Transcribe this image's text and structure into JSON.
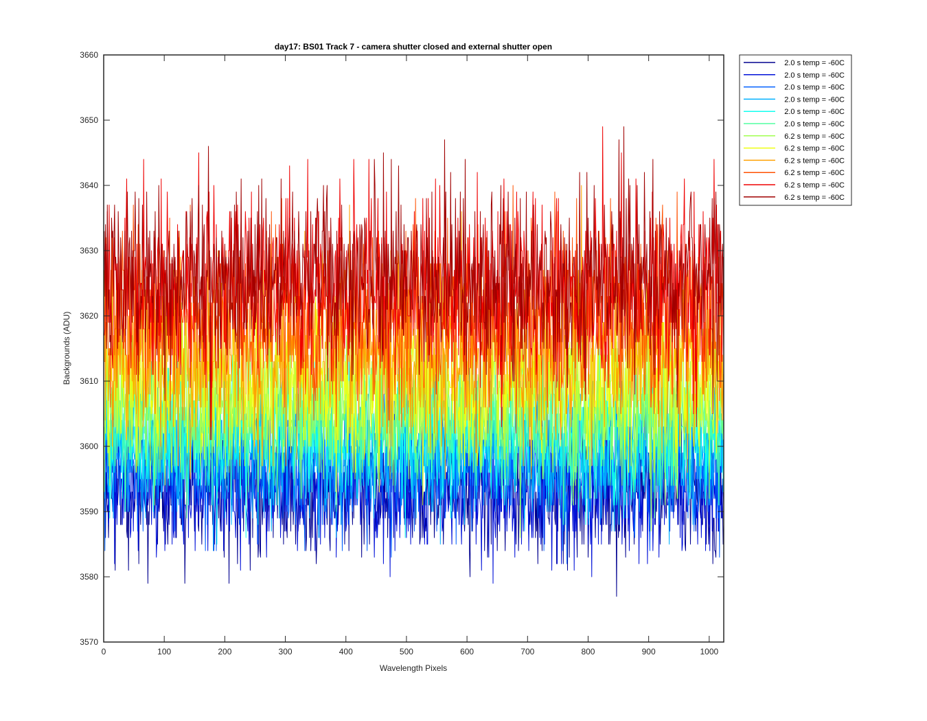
{
  "chart_data": {
    "type": "line",
    "title": "day17: BS01  Track 7 - camera shutter closed and external shutter open",
    "xlabel": "Wavelength Pixels",
    "ylabel": "Backgrounds (ADU)",
    "xlim": [
      0,
      1024
    ],
    "ylim": [
      3570,
      3660
    ],
    "xticks": [
      0,
      100,
      200,
      300,
      400,
      500,
      600,
      700,
      800,
      900,
      1000
    ],
    "yticks": [
      3570,
      3580,
      3590,
      3600,
      3610,
      3620,
      3630,
      3640,
      3650,
      3660
    ],
    "grid": false,
    "legend_position": "outside top-right",
    "x_range": [
      1,
      1024
    ],
    "series": [
      {
        "name": "2.0 s temp = -60C",
        "color": "#00008f",
        "mean": 3593,
        "spread": 5.0,
        "min": 3574,
        "max": 3605
      },
      {
        "name": "2.0 s temp = -60C",
        "color": "#0010d8",
        "mean": 3594,
        "spread": 5.0,
        "min": 3572,
        "max": 3607
      },
      {
        "name": "2.0 s temp = -60C",
        "color": "#0060ff",
        "mean": 3597,
        "spread": 5.0,
        "min": 3578,
        "max": 3610
      },
      {
        "name": "2.0 s temp = -60C",
        "color": "#00b0ff",
        "mean": 3599,
        "spread": 5.0,
        "min": 3577,
        "max": 3612
      },
      {
        "name": "2.0 s temp = -60C",
        "color": "#10ffef",
        "mean": 3601,
        "spread": 5.0,
        "min": 3578,
        "max": 3614
      },
      {
        "name": "2.0 s temp = -60C",
        "color": "#50ffa0",
        "mean": 3604,
        "spread": 5.0,
        "min": 3582,
        "max": 3617
      },
      {
        "name": "6.2 s temp = -60C",
        "color": "#a0ff50",
        "mean": 3607,
        "spread": 5.5,
        "min": 3586,
        "max": 3643
      },
      {
        "name": "6.2 s temp = -60C",
        "color": "#efff10",
        "mean": 3610,
        "spread": 6.0,
        "min": 3590,
        "max": 3646
      },
      {
        "name": "6.2 s temp = -60C",
        "color": "#ffa000",
        "mean": 3615,
        "spread": 7.0,
        "min": 3595,
        "max": 3651
      },
      {
        "name": "6.2 s temp = -60C",
        "color": "#ff5000",
        "mean": 3620,
        "spread": 7.0,
        "min": 3598,
        "max": 3656
      },
      {
        "name": "6.2 s temp = -60C",
        "color": "#ef0000",
        "mean": 3624,
        "spread": 7.0,
        "min": 3601,
        "max": 3655
      },
      {
        "name": "6.2 s temp = -60C",
        "color": "#a00000",
        "mean": 3625,
        "spread": 7.0,
        "min": 3601,
        "max": 3658
      }
    ]
  }
}
